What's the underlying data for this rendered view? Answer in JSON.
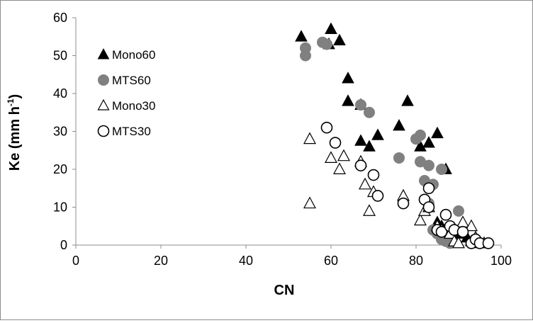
{
  "chart_data": {
    "type": "scatter",
    "xlabel": "CN",
    "ylabel": "Ke (mm h",
    "ylabel_sup": "-1",
    "ylabel_close": ")",
    "xlim": [
      0,
      100
    ],
    "ylim": [
      0,
      60
    ],
    "xticks": [
      "0",
      "20",
      "40",
      "60",
      "80",
      "100"
    ],
    "yticks": [
      "0",
      "10",
      "20",
      "30",
      "40",
      "50",
      "60"
    ],
    "grid": false,
    "legend_position": "top-left",
    "series": [
      {
        "name": "Mono60",
        "marker": "filled-triangle",
        "color": "#000000",
        "points": [
          [
            53,
            55
          ],
          [
            60,
            57
          ],
          [
            62,
            54
          ],
          [
            59.5,
            53
          ],
          [
            64,
            44
          ],
          [
            64,
            38
          ],
          [
            67,
            37
          ],
          [
            78,
            38
          ],
          [
            67,
            27.5
          ],
          [
            71,
            29
          ],
          [
            69,
            26
          ],
          [
            76,
            31.5
          ],
          [
            81,
            26
          ],
          [
            83,
            27
          ],
          [
            85,
            29.5
          ],
          [
            87,
            20
          ],
          [
            85,
            6
          ],
          [
            86,
            5
          ],
          [
            88,
            4
          ],
          [
            90,
            3
          ],
          [
            92,
            2
          ],
          [
            93,
            1
          ],
          [
            95,
            0.5
          ]
        ]
      },
      {
        "name": "MTS60",
        "marker": "filled-circle",
        "color": "#808080",
        "points": [
          [
            54,
            52
          ],
          [
            54,
            50
          ],
          [
            58,
            53.5
          ],
          [
            59,
            53
          ],
          [
            67,
            37
          ],
          [
            69,
            35
          ],
          [
            76,
            23
          ],
          [
            80,
            28
          ],
          [
            81,
            29
          ],
          [
            81,
            22
          ],
          [
            83,
            21
          ],
          [
            84,
            16
          ],
          [
            86,
            20
          ],
          [
            82,
            17
          ],
          [
            82,
            12
          ],
          [
            83,
            11
          ],
          [
            90,
            9
          ],
          [
            84,
            4
          ],
          [
            85,
            3
          ],
          [
            86,
            1.5
          ],
          [
            87,
            1
          ],
          [
            88,
            0.5
          ]
        ]
      },
      {
        "name": "Mono30",
        "marker": "open-triangle",
        "color": "#000000",
        "points": [
          [
            55,
            28
          ],
          [
            60,
            23
          ],
          [
            62,
            20
          ],
          [
            63,
            23.5
          ],
          [
            55,
            11
          ],
          [
            67,
            22
          ],
          [
            68,
            16
          ],
          [
            69,
            9
          ],
          [
            70,
            14
          ],
          [
            77,
            13
          ],
          [
            81,
            6.5
          ],
          [
            82,
            9
          ],
          [
            83,
            10
          ],
          [
            85,
            5
          ],
          [
            86,
            4
          ],
          [
            88,
            3
          ],
          [
            89,
            1
          ],
          [
            90,
            0.5
          ],
          [
            91,
            6
          ],
          [
            93,
            5
          ],
          [
            94,
            2
          ],
          [
            96,
            0.5
          ]
        ]
      },
      {
        "name": "MTS30",
        "marker": "open-circle",
        "color": "#000000",
        "points": [
          [
            59,
            31
          ],
          [
            61,
            27
          ],
          [
            67,
            21
          ],
          [
            70,
            18.5
          ],
          [
            71,
            13
          ],
          [
            77,
            11
          ],
          [
            82,
            12
          ],
          [
            83,
            15
          ],
          [
            83,
            10
          ],
          [
            85,
            4
          ],
          [
            86,
            3.5
          ],
          [
            87,
            8
          ],
          [
            88,
            5
          ],
          [
            89,
            4
          ],
          [
            91,
            3.5
          ],
          [
            93,
            0.5
          ],
          [
            94,
            1.5
          ],
          [
            95,
            0.5
          ],
          [
            97,
            0.5
          ]
        ]
      }
    ]
  }
}
